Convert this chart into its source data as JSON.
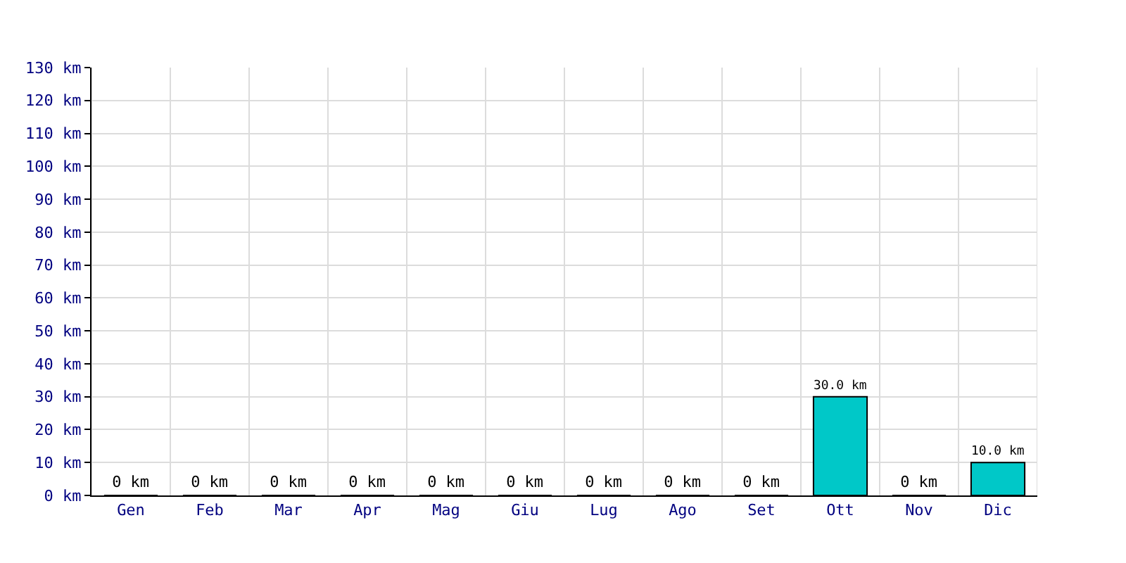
{
  "chart_data": {
    "type": "bar",
    "categories": [
      "Gen",
      "Feb",
      "Mar",
      "Apr",
      "Mag",
      "Giu",
      "Lug",
      "Ago",
      "Set",
      "Ott",
      "Nov",
      "Dic"
    ],
    "values": [
      0,
      0,
      0,
      0,
      0,
      0,
      0,
      0,
      0,
      30,
      0,
      10
    ],
    "value_labels": [
      "0 km",
      "0 km",
      "0 km",
      "0 km",
      "0 km",
      "0 km",
      "0 km",
      "0 km",
      "0 km",
      "30.0 km",
      "0 km",
      "10.0 km"
    ],
    "color": "#00c8c8",
    "ylim": [
      0,
      130
    ],
    "yticks": [
      {
        "value": 0,
        "label": "0 km"
      },
      {
        "value": 10,
        "label": "10 km"
      },
      {
        "value": 20,
        "label": "20 km"
      },
      {
        "value": 30,
        "label": "30 km"
      },
      {
        "value": 40,
        "label": "40 km"
      },
      {
        "value": 50,
        "label": "50 km"
      },
      {
        "value": 60,
        "label": "60 km"
      },
      {
        "value": 70,
        "label": "70 km"
      },
      {
        "value": 80,
        "label": "80 km"
      },
      {
        "value": 90,
        "label": "90 km"
      },
      {
        "value": 100,
        "label": "100 km"
      },
      {
        "value": 110,
        "label": "110 km"
      },
      {
        "value": 120,
        "label": "120 km"
      },
      {
        "value": 130,
        "label": "130 km"
      }
    ],
    "grid": true,
    "legend": false
  }
}
